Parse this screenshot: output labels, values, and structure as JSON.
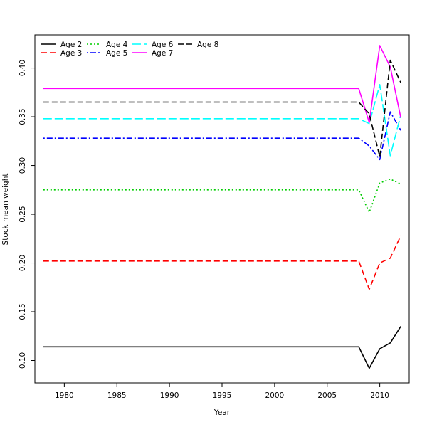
{
  "chart_data": {
    "type": "line",
    "title": "",
    "xlabel": "Year",
    "ylabel": "Stock mean weight",
    "xlim": [
      1977.2,
      2012.8
    ],
    "ylim": [
      0.077,
      0.434
    ],
    "x_ticks": [
      1980,
      1985,
      1990,
      1995,
      2000,
      2005,
      2010
    ],
    "x_tick_labels": [
      "1980",
      "1985",
      "1990",
      "1995",
      "2000",
      "2005",
      "2010"
    ],
    "y_ticks": [
      0.1,
      0.15,
      0.2,
      0.25,
      0.3,
      0.35,
      0.4
    ],
    "y_tick_labels": [
      "0.10",
      "0.15",
      "0.20",
      "0.25",
      "0.30",
      "0.35",
      "0.40"
    ],
    "grid": false,
    "legend_position": "top-left",
    "x": [
      1978,
      1979,
      1980,
      1981,
      1982,
      1983,
      1984,
      1985,
      1986,
      1987,
      1988,
      1989,
      1990,
      1991,
      1992,
      1993,
      1994,
      1995,
      1996,
      1997,
      1998,
      1999,
      2000,
      2001,
      2002,
      2003,
      2004,
      2005,
      2006,
      2007,
      2008,
      2009,
      2010,
      2011,
      2012
    ],
    "series": [
      {
        "name": "Age 2",
        "color": "#000000",
        "dash": "solid",
        "values": [
          0.114,
          0.114,
          0.114,
          0.114,
          0.114,
          0.114,
          0.114,
          0.114,
          0.114,
          0.114,
          0.114,
          0.114,
          0.114,
          0.114,
          0.114,
          0.114,
          0.114,
          0.114,
          0.114,
          0.114,
          0.114,
          0.114,
          0.114,
          0.114,
          0.114,
          0.114,
          0.114,
          0.114,
          0.114,
          0.114,
          0.114,
          0.092,
          0.112,
          0.118,
          0.135
        ]
      },
      {
        "name": "Age 3",
        "color": "#ff0000",
        "dash": "dashed",
        "values": [
          0.202,
          0.202,
          0.202,
          0.202,
          0.202,
          0.202,
          0.202,
          0.202,
          0.202,
          0.202,
          0.202,
          0.202,
          0.202,
          0.202,
          0.202,
          0.202,
          0.202,
          0.202,
          0.202,
          0.202,
          0.202,
          0.202,
          0.202,
          0.202,
          0.202,
          0.202,
          0.202,
          0.202,
          0.202,
          0.202,
          0.202,
          0.173,
          0.2,
          0.205,
          0.228
        ]
      },
      {
        "name": "Age 4",
        "color": "#00cd00",
        "dash": "dotted",
        "values": [
          0.275,
          0.275,
          0.275,
          0.275,
          0.275,
          0.275,
          0.275,
          0.275,
          0.275,
          0.275,
          0.275,
          0.275,
          0.275,
          0.275,
          0.275,
          0.275,
          0.275,
          0.275,
          0.275,
          0.275,
          0.275,
          0.275,
          0.275,
          0.275,
          0.275,
          0.275,
          0.275,
          0.275,
          0.275,
          0.275,
          0.275,
          0.252,
          0.282,
          0.286,
          0.281
        ]
      },
      {
        "name": "Age 5",
        "color": "#0000ff",
        "dash": "dotdash",
        "values": [
          0.328,
          0.328,
          0.328,
          0.328,
          0.328,
          0.328,
          0.328,
          0.328,
          0.328,
          0.328,
          0.328,
          0.328,
          0.328,
          0.328,
          0.328,
          0.328,
          0.328,
          0.328,
          0.328,
          0.328,
          0.328,
          0.328,
          0.328,
          0.328,
          0.328,
          0.328,
          0.328,
          0.328,
          0.328,
          0.328,
          0.328,
          0.32,
          0.306,
          0.355,
          0.336
        ]
      },
      {
        "name": "Age 6",
        "color": "#00ffff",
        "dash": "longdash",
        "values": [
          0.348,
          0.348,
          0.348,
          0.348,
          0.348,
          0.348,
          0.348,
          0.348,
          0.348,
          0.348,
          0.348,
          0.348,
          0.348,
          0.348,
          0.348,
          0.348,
          0.348,
          0.348,
          0.348,
          0.348,
          0.348,
          0.348,
          0.348,
          0.348,
          0.348,
          0.348,
          0.348,
          0.348,
          0.348,
          0.348,
          0.348,
          0.343,
          0.383,
          0.31,
          0.352
        ]
      },
      {
        "name": "Age 7",
        "color": "#ff00ff",
        "dash": "solid",
        "values": [
          0.379,
          0.379,
          0.379,
          0.379,
          0.379,
          0.379,
          0.379,
          0.379,
          0.379,
          0.379,
          0.379,
          0.379,
          0.379,
          0.379,
          0.379,
          0.379,
          0.379,
          0.379,
          0.379,
          0.379,
          0.379,
          0.379,
          0.379,
          0.379,
          0.379,
          0.379,
          0.379,
          0.379,
          0.379,
          0.379,
          0.379,
          0.344,
          0.423,
          0.401,
          0.349
        ]
      },
      {
        "name": "Age 8",
        "color": "#000000",
        "dash": "dashed",
        "values": [
          0.365,
          0.365,
          0.365,
          0.365,
          0.365,
          0.365,
          0.365,
          0.365,
          0.365,
          0.365,
          0.365,
          0.365,
          0.365,
          0.365,
          0.365,
          0.365,
          0.365,
          0.365,
          0.365,
          0.365,
          0.365,
          0.365,
          0.365,
          0.365,
          0.365,
          0.365,
          0.365,
          0.365,
          0.365,
          0.365,
          0.365,
          0.353,
          0.309,
          0.408,
          0.385
        ]
      }
    ]
  }
}
